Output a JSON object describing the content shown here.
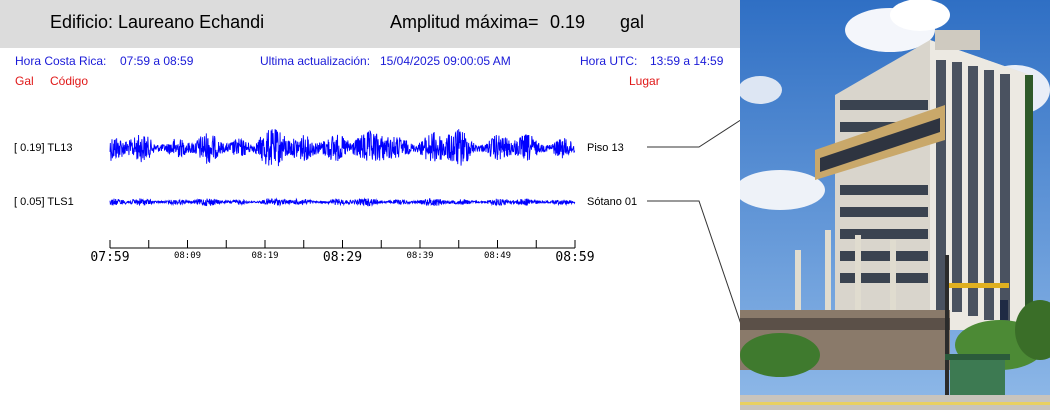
{
  "header": {
    "building": "Edificio: Laureano Echandi",
    "amplitude_label": "Amplitud máxima=",
    "amplitude_value": "0.19",
    "amplitude_unit": "gal"
  },
  "info": {
    "local_time_label": "Hora Costa Rica:",
    "local_time_range": "07:59 a 08:59",
    "update_label": "Ultima actualización:",
    "update_value": "15/04/2025 09:00:05 AM",
    "utc_label": "Hora UTC:",
    "utc_range": "13:59 a 14:59"
  },
  "columns": {
    "gal": "Gal",
    "code": "Código",
    "place": "Lugar"
  },
  "colors": {
    "trace": "#0000ff",
    "header_bg": "#dcdcdc",
    "info_text": "#1a1ad8",
    "column_text": "#e01818"
  },
  "chart_data": {
    "type": "line",
    "x": [
      "07:59",
      "08:09",
      "08:19",
      "08:29",
      "08:39",
      "08:49",
      "08:59"
    ],
    "series": [
      {
        "name": "TL13",
        "channel_label": "[  0.19] TL13",
        "place": "Piso 13",
        "max_gal": 0.19
      },
      {
        "name": "TLS1",
        "channel_label": "[  0.05] TLS1",
        "place": "Sótano 01",
        "max_gal": 0.05
      }
    ],
    "xtick_labels": [
      "07:59",
      "08:09",
      "08:19",
      "08:29",
      "08:39",
      "08:49",
      "08:59"
    ]
  }
}
